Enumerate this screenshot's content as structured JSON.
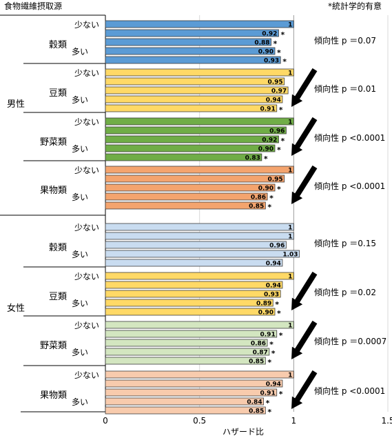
{
  "header": {
    "source_label": "食物繊維摂取源",
    "significance_note": "*統計学的有意"
  },
  "chart_data": {
    "type": "bar",
    "orientation": "horizontal",
    "xlabel": "ハザード比",
    "xlim": [
      0,
      1.5
    ],
    "xticks": [
      "0",
      "0.5",
      "1",
      "1.5"
    ],
    "reference_line": 1,
    "grid": true,
    "sexes": [
      {
        "sex": "男性",
        "groups": [
          {
            "name": "穀類",
            "low_label": "少ない",
            "high_label": "多い",
            "color": "#5b9bd5",
            "pattern": "plain",
            "values": [
              1,
              0.92,
              0.88,
              0.9,
              0.93
            ],
            "labels": [
              "1",
              "0.92",
              "0.88",
              "0.90",
              "0.93"
            ],
            "significant": [
              false,
              true,
              true,
              true,
              true
            ],
            "trend": "傾向性 p ＝0.07",
            "arrow": false
          },
          {
            "name": "豆類",
            "low_label": "少ない",
            "high_label": "多い",
            "color": "#ffd966",
            "pattern": "plain",
            "values": [
              1,
              0.95,
              0.97,
              0.94,
              0.91
            ],
            "labels": [
              "1",
              "0.95",
              "0.97",
              "0.94",
              "0.91"
            ],
            "significant": [
              false,
              false,
              false,
              false,
              true
            ],
            "trend": "傾向性 p ＝0.01",
            "arrow": true
          },
          {
            "name": "野菜類",
            "low_label": "少ない",
            "high_label": "多い",
            "color": "#70ad47",
            "pattern": "plain",
            "values": [
              1,
              0.96,
              0.92,
              0.9,
              0.83
            ],
            "labels": [
              "1",
              "0.96",
              "0.92",
              "0.90",
              "0.83"
            ],
            "significant": [
              false,
              false,
              true,
              true,
              true
            ],
            "trend": "傾向性 p <0.0001",
            "arrow": true
          },
          {
            "name": "果物類",
            "low_label": "少ない",
            "high_label": "多い",
            "color": "#f4a46e",
            "pattern": "plain",
            "values": [
              1,
              0.95,
              0.9,
              0.86,
              0.85
            ],
            "labels": [
              "1",
              "0.95",
              "0.90",
              "0.86",
              "0.85"
            ],
            "significant": [
              false,
              false,
              true,
              true,
              true
            ],
            "trend": "傾向性 p <0.0001",
            "arrow": true
          }
        ]
      },
      {
        "sex": "女性",
        "groups": [
          {
            "name": "穀類",
            "low_label": "少ない",
            "high_label": "多い",
            "color": "#c9dcf0",
            "pattern": "plain",
            "values": [
              1,
              1,
              0.96,
              1.03,
              0.94
            ],
            "labels": [
              "1",
              "1",
              "0.96",
              "1.03",
              "0.94"
            ],
            "significant": [
              false,
              false,
              false,
              false,
              false
            ],
            "trend": "傾向性 p ＝0.15",
            "arrow": false
          },
          {
            "name": "豆類",
            "low_label": "少ない",
            "high_label": "多い",
            "color": "#ffd966",
            "pattern": "plain",
            "values": [
              1,
              0.94,
              0.93,
              0.89,
              0.9
            ],
            "labels": [
              "1",
              "0.94",
              "0.93",
              "0.89",
              "0.90"
            ],
            "significant": [
              false,
              false,
              false,
              true,
              true
            ],
            "trend": "傾向性 p ＝0.02",
            "arrow": true
          },
          {
            "name": "野菜類",
            "low_label": "少ない",
            "high_label": "多い",
            "color": "#d3e6c0",
            "pattern": "plain",
            "values": [
              1,
              0.91,
              0.86,
              0.87,
              0.85
            ],
            "labels": [
              "1",
              "0.91",
              "0.86",
              "0.87",
              "0.85"
            ],
            "significant": [
              false,
              true,
              true,
              true,
              true
            ],
            "trend": "傾向性 p ＝0.0007",
            "arrow": true
          },
          {
            "name": "果物類",
            "low_label": "少ない",
            "high_label": "多い",
            "color": "#f8cbad",
            "pattern": "plain",
            "values": [
              1,
              0.94,
              0.91,
              0.84,
              0.85
            ],
            "labels": [
              "1",
              "0.94",
              "0.91",
              "0.84",
              "0.85"
            ],
            "significant": [
              false,
              false,
              true,
              true,
              true
            ],
            "trend": "傾向性 p <0.0001",
            "arrow": true
          }
        ]
      }
    ]
  }
}
